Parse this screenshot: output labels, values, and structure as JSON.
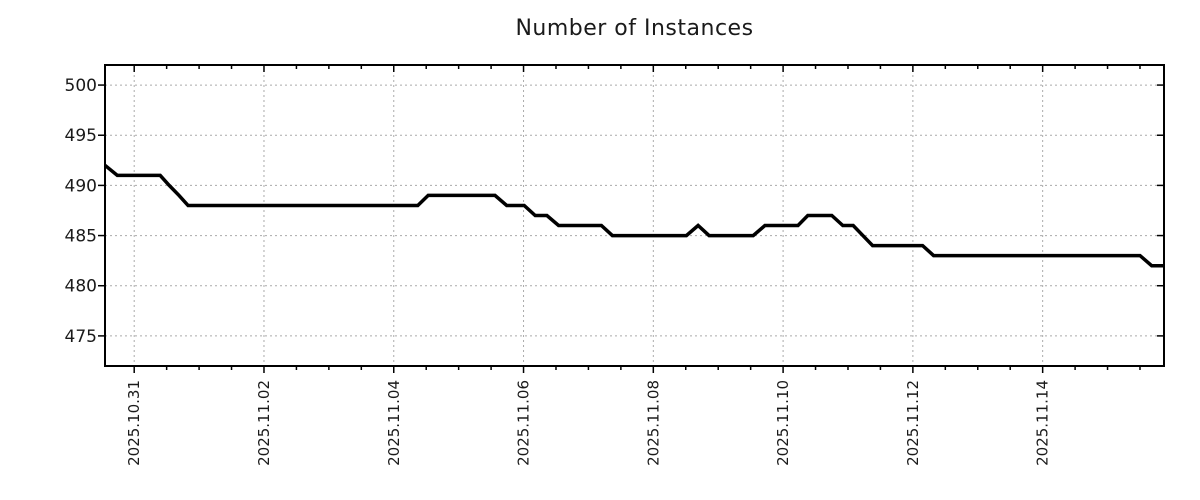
{
  "title": "Number of Instances",
  "colors": {
    "background": "#ffffff",
    "line": "#000000",
    "grid": "#aaaaaa",
    "axis": "#000000",
    "text": "#1a1a1a"
  },
  "chart_data": {
    "type": "line",
    "title": "Number of Instances",
    "legend": false,
    "grid": true,
    "x_axis": {
      "unit": "days since 2025-10-31 00:00",
      "range": [
        -0.45,
        15.87
      ],
      "major_tick_interval": 2,
      "minor_tick_interval": 0.5,
      "major_ticks": [
        0,
        2,
        4,
        6,
        8,
        10,
        12,
        14
      ],
      "major_tick_labels": [
        "2025.10.31",
        "2025.11.02",
        "2025.11.04",
        "2025.11.06",
        "2025.11.08",
        "2025.11.10",
        "2025.11.12",
        "2025.11.14"
      ]
    },
    "y_axis": {
      "range": [
        472,
        502
      ],
      "major_ticks": [
        475,
        480,
        485,
        490,
        495,
        500
      ],
      "major_tick_labels": [
        "475",
        "480",
        "485",
        "490",
        "495",
        "500"
      ]
    },
    "series": [
      {
        "name": "instances",
        "color": "#000000",
        "points": [
          [
            -0.45,
            492
          ],
          [
            -0.26,
            491
          ],
          [
            0.4,
            491
          ],
          [
            0.54,
            490
          ],
          [
            0.69,
            489
          ],
          [
            0.83,
            488
          ],
          [
            4.37,
            488
          ],
          [
            4.53,
            489
          ],
          [
            5.56,
            489
          ],
          [
            5.74,
            488
          ],
          [
            6.01,
            488
          ],
          [
            6.18,
            487
          ],
          [
            6.36,
            487
          ],
          [
            6.54,
            486
          ],
          [
            7.2,
            486
          ],
          [
            7.37,
            485
          ],
          [
            8.51,
            485
          ],
          [
            8.69,
            486
          ],
          [
            8.86,
            485
          ],
          [
            9.54,
            485
          ],
          [
            9.72,
            486
          ],
          [
            10.23,
            486
          ],
          [
            10.38,
            487
          ],
          [
            10.75,
            487
          ],
          [
            10.92,
            486
          ],
          [
            11.08,
            486
          ],
          [
            11.23,
            485
          ],
          [
            11.38,
            484
          ],
          [
            12.15,
            484
          ],
          [
            12.32,
            483
          ],
          [
            15.5,
            483
          ],
          [
            15.68,
            482
          ],
          [
            15.87,
            482
          ]
        ]
      }
    ]
  }
}
